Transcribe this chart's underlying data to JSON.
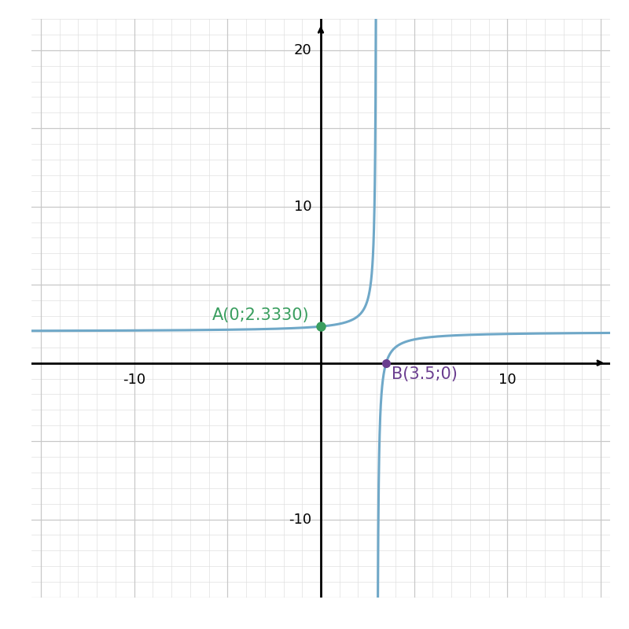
{
  "xlim": [
    -15.5,
    15.5
  ],
  "ylim": [
    -15.0,
    22.0
  ],
  "grid_color": "#c8c8c8",
  "grid_minor_color": "#e0e0e0",
  "axis_color": "#000000",
  "curve_color": "#6fa8c8",
  "curve_linewidth": 2.2,
  "vertical_asymptote": 3.0,
  "horizontal_asymptote": 2.0,
  "point_A": [
    0,
    2.333
  ],
  "point_A_color": "#3a9e5f",
  "point_A_label": "A(0;2.3330)",
  "point_B": [
    3.5,
    0
  ],
  "point_B_color": "#6a3d8f",
  "point_B_label": "B(3.5;0)",
  "label_fontsize": 15,
  "tick_fontsize": 13,
  "figsize": [
    8,
    8
  ],
  "dpi": 100,
  "xtick_labels": [
    -10,
    10
  ],
  "ytick_labels": [
    -10,
    10,
    20
  ]
}
